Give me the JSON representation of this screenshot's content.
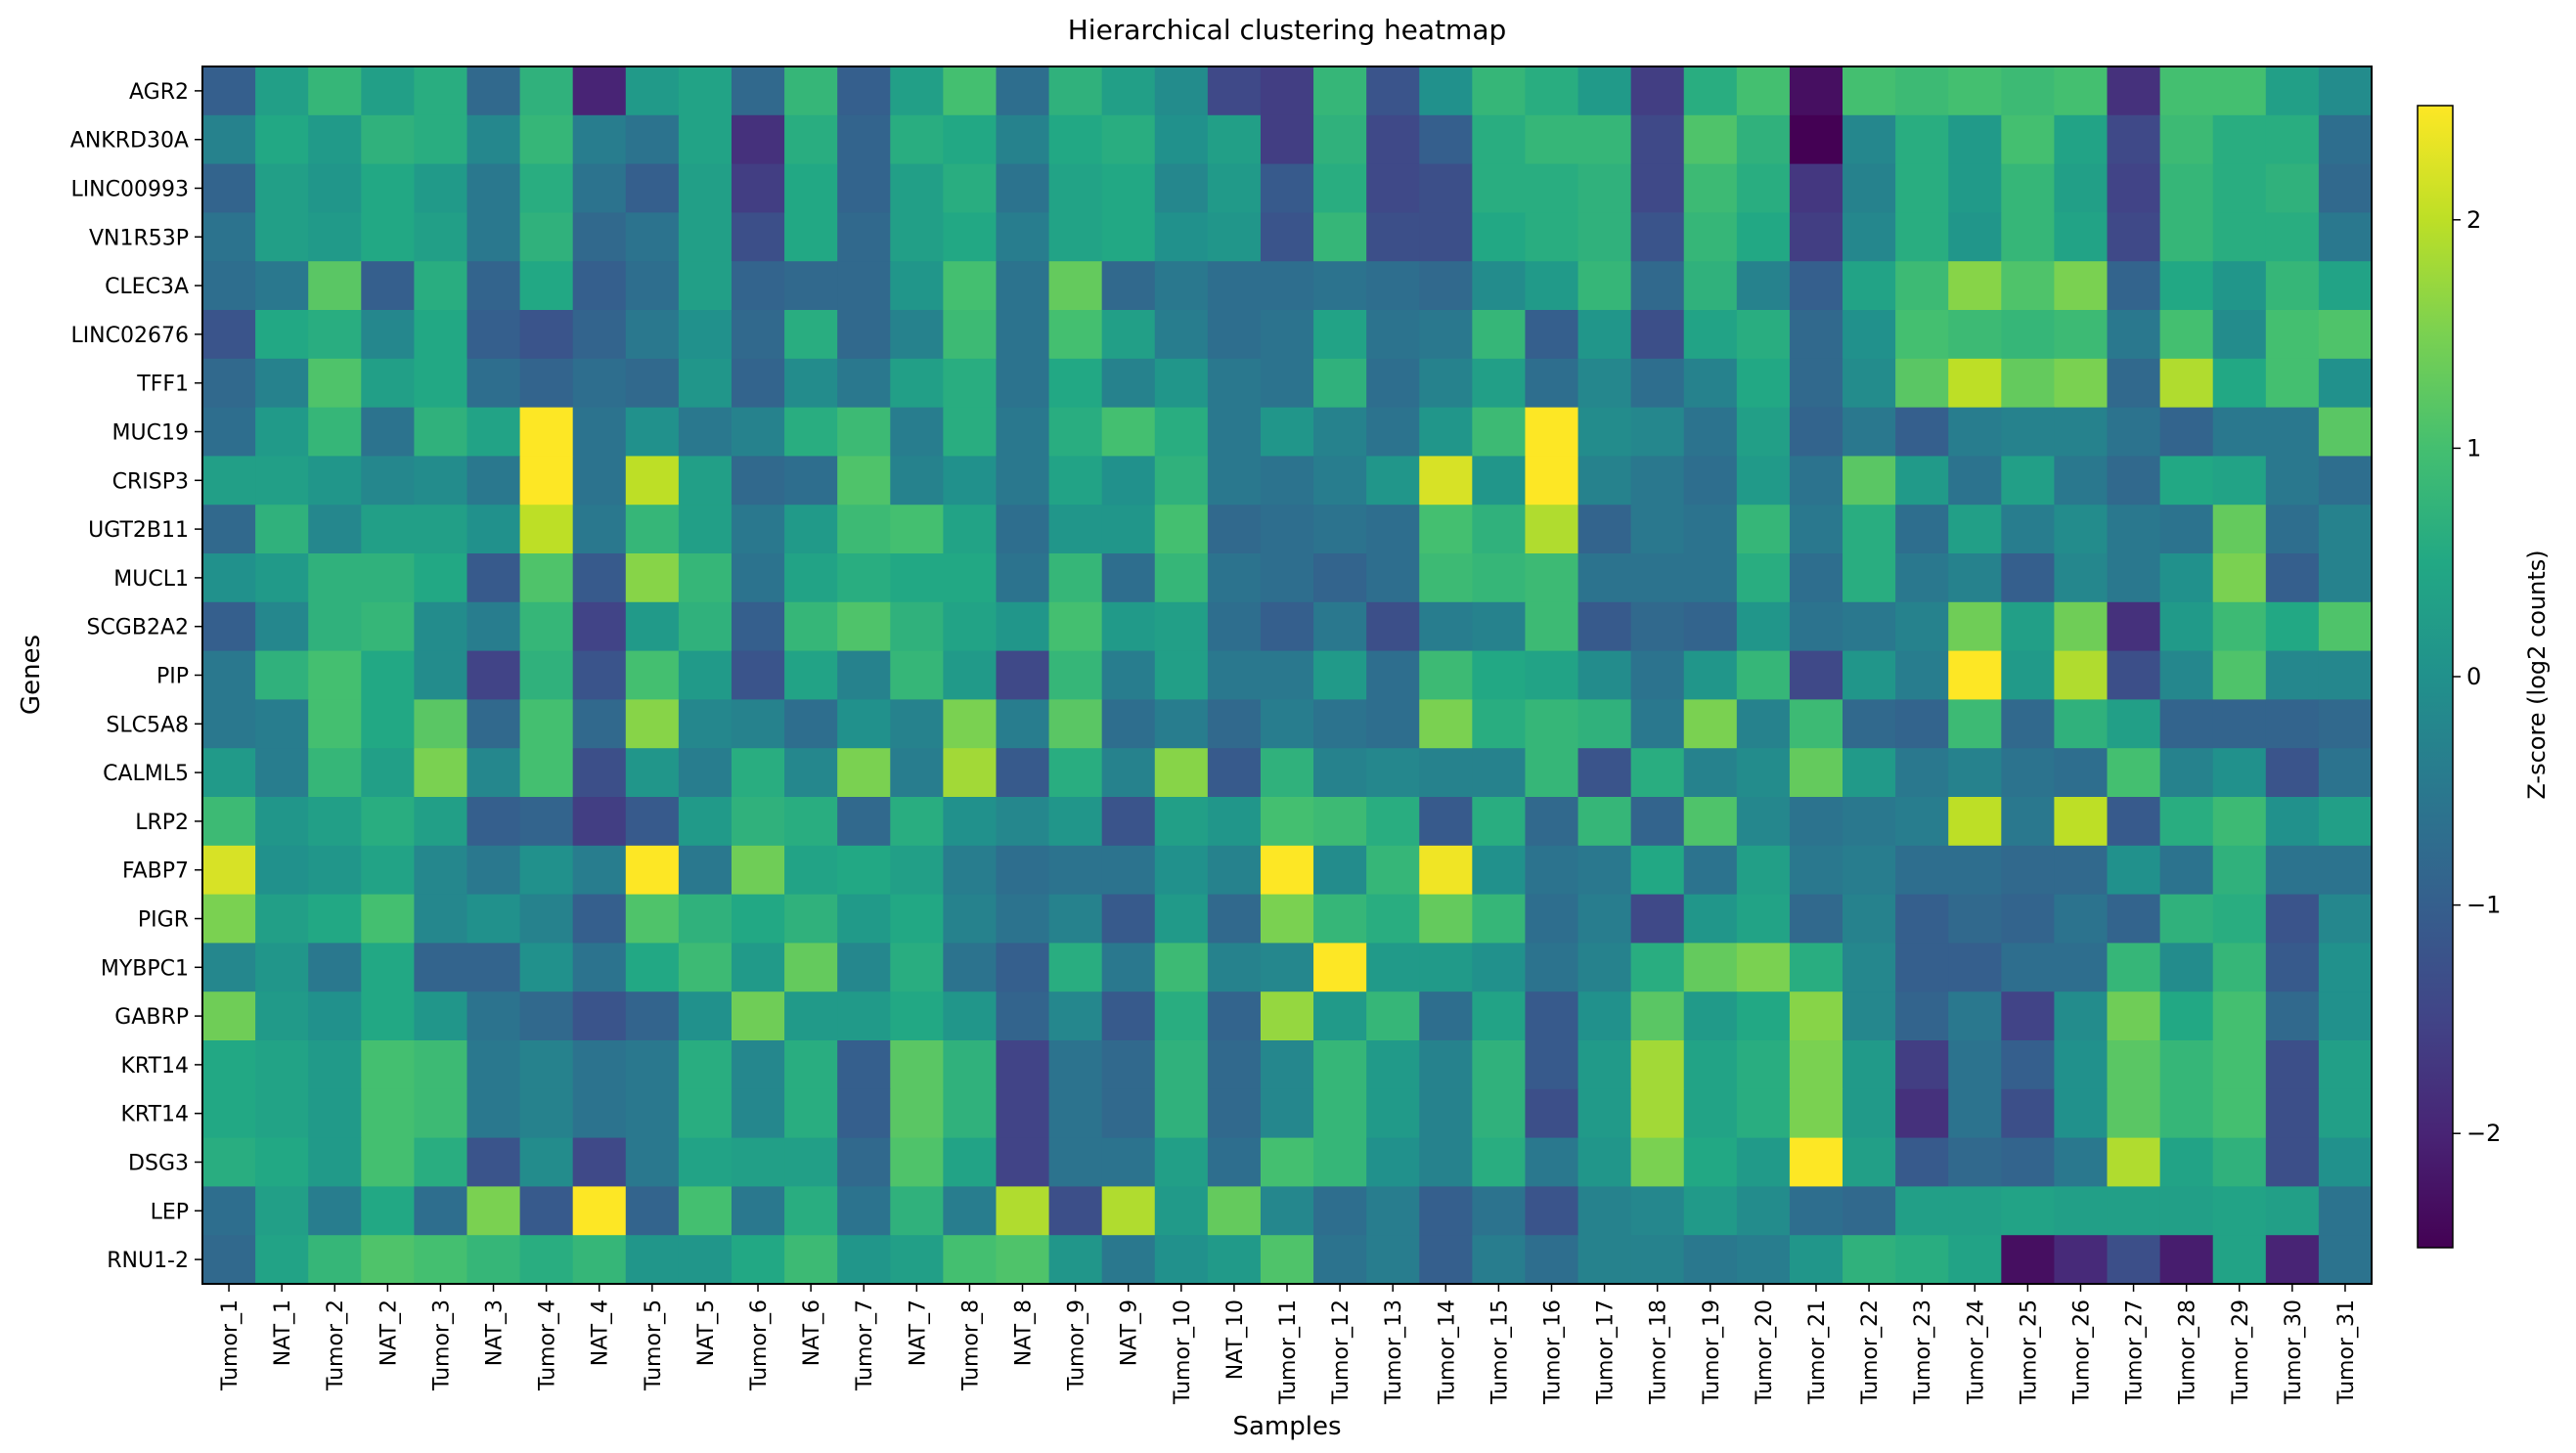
{
  "chart_data": {
    "type": "heatmap",
    "title": "Hierarchical clustering heatmap",
    "xlabel": "Samples",
    "ylabel": "Genes",
    "colorbar_label": "Z-score (log2 counts)",
    "colormap": "viridis",
    "color_range": [
      -2.5,
      2.5
    ],
    "colorbar_ticks": [
      2,
      1,
      0,
      -1,
      -2
    ],
    "colorbar_tick_labels": [
      "2",
      "1",
      "0",
      "−1",
      "−2"
    ],
    "x": [
      "Tumor_1",
      "NAT_1",
      "Tumor_2",
      "NAT_2",
      "Tumor_3",
      "NAT_3",
      "Tumor_4",
      "NAT_4",
      "Tumor_5",
      "NAT_5",
      "Tumor_6",
      "NAT_6",
      "Tumor_7",
      "NAT_7",
      "Tumor_8",
      "NAT_8",
      "Tumor_9",
      "NAT_9",
      "Tumor_10",
      "NAT_10",
      "Tumor_11",
      "Tumor_12",
      "Tumor_13",
      "Tumor_14",
      "Tumor_15",
      "Tumor_16",
      "Tumor_17",
      "Tumor_18",
      "Tumor_19",
      "Tumor_20",
      "Tumor_21",
      "Tumor_22",
      "Tumor_23",
      "Tumor_24",
      "Tumor_25",
      "Tumor_26",
      "Tumor_27",
      "Tumor_28",
      "Tumor_29",
      "Tumor_30",
      "Tumor_31"
    ],
    "y": [
      "AGR2",
      "ANKRD30A",
      "LINC00993",
      "VN1R53P",
      "CLEC3A",
      "LINC02676",
      "TFF1",
      "MUC19",
      "CRISP3",
      "UGT2B11",
      "MUCL1",
      "SCGB2A2",
      "PIP",
      "SLC5A8",
      "CALML5",
      "LRP2",
      "FABP7",
      "PIGR",
      "MYBPC1",
      "GABRP",
      "KRT14",
      "KRT14",
      "DSG3",
      "LEP",
      "RNU1-2"
    ],
    "y_label_colors": [
      "#bcbd22",
      "#bcbd22",
      "#bcbd22",
      "#bcbd22",
      "#b22222",
      "#b22222",
      "#b22222",
      "#228b22",
      "#228b22",
      "#228b22",
      "#228b22",
      "#bcbd22",
      "#bcbd22",
      "#000000",
      "#0000ff",
      "#0000ff",
      "#0000ff",
      "#0000ff",
      "#ff0000",
      "#ff0000",
      "#ff0000",
      "#ff0000",
      "#ff0000",
      "#40e0d0",
      "#000000"
    ],
    "values": [
      [
        -1.0,
        0.3,
        0.8,
        0.3,
        0.6,
        -0.8,
        0.7,
        -2.0,
        0.2,
        0.4,
        -0.8,
        0.8,
        -1.0,
        0.3,
        1.0,
        -0.7,
        0.7,
        0.3,
        -0.1,
        -1.4,
        -1.6,
        0.8,
        -1.2,
        0.0,
        0.8,
        0.6,
        0.2,
        -1.6,
        0.6,
        1.0,
        -2.3,
        1.0,
        0.9,
        1.0,
        0.9,
        1.0,
        -1.8,
        1.0,
        1.0,
        0.3,
        -0.1
      ],
      [
        -0.3,
        0.5,
        0.2,
        0.7,
        0.6,
        -0.2,
        0.8,
        -0.4,
        -0.6,
        0.4,
        -1.8,
        0.6,
        -0.9,
        0.6,
        0.5,
        -0.3,
        0.5,
        0.6,
        0.0,
        0.3,
        -1.6,
        0.7,
        -1.4,
        -1.0,
        0.6,
        0.8,
        0.8,
        -1.4,
        1.1,
        0.7,
        -2.6,
        -0.2,
        0.6,
        0.2,
        1.0,
        0.4,
        -1.4,
        0.9,
        0.6,
        0.6,
        -0.7
      ],
      [
        -0.9,
        0.3,
        0.1,
        0.5,
        0.2,
        -0.5,
        0.6,
        -0.6,
        -1.0,
        0.3,
        -1.6,
        0.5,
        -0.9,
        0.3,
        0.6,
        -0.6,
        0.4,
        0.5,
        -0.2,
        0.2,
        -1.1,
        0.6,
        -1.4,
        -1.3,
        0.6,
        0.6,
        0.7,
        -1.4,
        0.9,
        0.6,
        -1.7,
        -0.3,
        0.6,
        0.2,
        0.8,
        0.3,
        -1.5,
        0.8,
        0.6,
        0.7,
        -0.8
      ],
      [
        -0.6,
        0.3,
        0.2,
        0.5,
        0.3,
        -0.5,
        0.7,
        -0.8,
        -0.6,
        0.3,
        -1.3,
        0.5,
        -0.8,
        0.3,
        0.5,
        -0.4,
        0.4,
        0.5,
        0.0,
        0.1,
        -1.2,
        0.8,
        -1.3,
        -1.3,
        0.5,
        0.6,
        0.7,
        -1.2,
        0.8,
        0.5,
        -1.6,
        -0.2,
        0.6,
        0.1,
        0.8,
        0.4,
        -1.4,
        0.8,
        0.6,
        0.6,
        -0.5
      ],
      [
        -0.7,
        -0.5,
        1.2,
        -1.0,
        0.6,
        -0.9,
        0.5,
        -1.0,
        -0.7,
        0.3,
        -0.9,
        -0.8,
        -0.8,
        0.1,
        1.0,
        -0.6,
        1.3,
        -0.8,
        -0.5,
        -0.7,
        -0.7,
        -0.6,
        -0.7,
        -0.8,
        -0.1,
        0.2,
        0.8,
        -0.8,
        0.7,
        -0.3,
        -1.0,
        0.4,
        0.9,
        1.6,
        1.1,
        1.5,
        -0.9,
        0.5,
        0.1,
        0.8,
        0.4
      ],
      [
        -1.2,
        0.5,
        0.6,
        -0.2,
        0.5,
        -1.0,
        -1.2,
        -0.9,
        -0.5,
        0.0,
        -0.8,
        0.6,
        -0.8,
        -0.3,
        0.9,
        -0.6,
        1.0,
        0.3,
        -0.4,
        -0.7,
        -0.6,
        0.4,
        -0.6,
        -0.5,
        0.8,
        -1.0,
        0.1,
        -1.3,
        0.4,
        0.6,
        -0.8,
        0.0,
        1.0,
        0.9,
        0.8,
        0.9,
        -0.5,
        1.0,
        -0.1,
        1.0,
        1.1
      ],
      [
        -0.8,
        -0.3,
        1.1,
        0.3,
        0.5,
        -0.7,
        -0.9,
        -0.7,
        -0.8,
        0.1,
        -0.9,
        -0.1,
        -0.5,
        0.3,
        0.6,
        -0.6,
        0.5,
        -0.3,
        0.1,
        -0.5,
        -0.6,
        0.7,
        -0.7,
        -0.3,
        0.3,
        -0.7,
        -0.2,
        -0.7,
        -0.3,
        0.5,
        -0.8,
        -0.1,
        1.2,
        2.0,
        1.3,
        1.5,
        -0.8,
        1.9,
        0.5,
        1.0,
        0.0
      ],
      [
        -0.7,
        0.2,
        0.8,
        -0.6,
        0.7,
        0.4,
        2.5,
        -0.6,
        0.0,
        -0.5,
        -0.3,
        0.6,
        0.9,
        -0.4,
        0.6,
        -0.5,
        0.6,
        1.0,
        0.6,
        -0.5,
        0.1,
        -0.3,
        -0.6,
        0.1,
        0.9,
        2.5,
        -0.1,
        -0.2,
        -0.6,
        0.3,
        -0.9,
        -0.5,
        -1.0,
        -0.4,
        -0.3,
        -0.3,
        -0.6,
        -0.9,
        -0.5,
        -0.5,
        1.2
      ],
      [
        0.3,
        0.3,
        0.1,
        -0.2,
        -0.1,
        -0.5,
        2.5,
        -0.6,
        2.0,
        0.3,
        -0.8,
        -0.7,
        1.1,
        -0.3,
        0.0,
        -0.5,
        0.4,
        0.0,
        0.7,
        -0.5,
        -0.6,
        -0.4,
        0.1,
        2.2,
        0.1,
        2.5,
        -0.3,
        -0.5,
        -0.7,
        0.2,
        -0.6,
        1.2,
        0.2,
        -0.6,
        0.3,
        -0.5,
        -0.8,
        0.5,
        0.4,
        -0.5,
        -0.7
      ],
      [
        -0.8,
        0.7,
        -0.2,
        0.3,
        0.3,
        0.0,
        2.0,
        -0.5,
        0.8,
        0.3,
        -0.5,
        0.2,
        0.9,
        1.0,
        0.4,
        -0.7,
        0.1,
        0.1,
        1.0,
        -0.8,
        -0.7,
        -0.6,
        -0.7,
        1.0,
        0.7,
        1.9,
        -0.9,
        -0.5,
        -0.6,
        0.8,
        -0.5,
        0.6,
        -0.7,
        0.3,
        -0.4,
        -0.1,
        -0.5,
        -0.6,
        1.3,
        -0.7,
        -0.3
      ],
      [
        0.0,
        0.2,
        0.7,
        0.7,
        0.5,
        -1.1,
        1.1,
        -1.1,
        1.6,
        0.8,
        -0.6,
        0.4,
        0.6,
        0.5,
        0.5,
        -0.6,
        0.8,
        -0.7,
        0.8,
        -0.6,
        -0.7,
        -0.9,
        -0.7,
        0.9,
        0.8,
        0.9,
        -0.6,
        -0.6,
        -0.6,
        0.6,
        -0.7,
        0.6,
        -0.5,
        -0.3,
        -1.0,
        -0.2,
        -0.5,
        0.0,
        1.5,
        -1.0,
        -0.3
      ],
      [
        -1.0,
        -0.2,
        0.7,
        0.8,
        -0.1,
        -0.4,
        0.8,
        -1.5,
        0.2,
        0.7,
        -1.0,
        0.8,
        1.1,
        0.7,
        0.4,
        0.1,
        1.0,
        0.2,
        0.3,
        -0.7,
        -1.0,
        -0.5,
        -1.3,
        -0.4,
        -0.3,
        0.9,
        -1.1,
        -0.8,
        -0.9,
        0.1,
        -0.6,
        -0.5,
        -0.3,
        1.4,
        0.3,
        1.4,
        -1.8,
        0.2,
        0.9,
        0.5,
        1.1
      ],
      [
        -0.5,
        0.7,
        1.0,
        0.5,
        -0.1,
        -1.5,
        0.7,
        -1.2,
        1.0,
        0.2,
        -1.2,
        0.4,
        -0.3,
        0.8,
        0.2,
        -1.4,
        0.8,
        -0.4,
        0.3,
        -0.5,
        -0.5,
        0.2,
        -0.7,
        0.9,
        0.5,
        0.4,
        -0.1,
        -0.6,
        0.1,
        0.8,
        -1.4,
        0.1,
        -0.4,
        2.5,
        0.2,
        1.9,
        -1.3,
        -0.2,
        1.1,
        -0.2,
        -0.2
      ],
      [
        -0.5,
        -0.4,
        1.0,
        0.5,
        1.2,
        -0.8,
        1.0,
        -0.8,
        1.6,
        -0.2,
        -0.3,
        -0.7,
        0.0,
        -0.3,
        1.5,
        -0.4,
        1.2,
        -0.7,
        -0.4,
        -0.8,
        -0.4,
        -0.6,
        -0.7,
        1.5,
        0.6,
        0.8,
        0.7,
        -0.5,
        1.5,
        -0.3,
        0.9,
        -0.8,
        -0.9,
        0.9,
        -0.8,
        0.7,
        0.3,
        -0.9,
        -0.9,
        -0.9,
        -0.8
      ],
      [
        0.2,
        -0.4,
        0.8,
        0.3,
        1.5,
        -0.2,
        1.0,
        -1.3,
        0.1,
        -0.4,
        0.6,
        -0.2,
        1.5,
        -0.4,
        1.8,
        -1.1,
        0.6,
        -0.3,
        1.6,
        -1.1,
        0.7,
        -0.3,
        -0.2,
        -0.3,
        -0.3,
        0.8,
        -1.2,
        0.6,
        -0.3,
        -0.1,
        1.3,
        0.2,
        -0.5,
        -0.3,
        -0.6,
        -0.7,
        1.0,
        -0.3,
        0.0,
        -1.2,
        -0.6
      ],
      [
        0.9,
        0.1,
        0.3,
        0.6,
        0.3,
        -1.0,
        -0.9,
        -1.6,
        -1.1,
        0.2,
        0.7,
        0.6,
        -0.8,
        0.6,
        0.0,
        -0.2,
        0.1,
        -1.2,
        0.3,
        0.1,
        1.0,
        0.9,
        0.6,
        -1.1,
        0.6,
        -0.8,
        0.8,
        -0.9,
        1.1,
        -0.2,
        -0.6,
        -0.5,
        -0.4,
        2.0,
        -0.5,
        2.0,
        -1.1,
        0.6,
        0.9,
        0.0,
        0.3
      ],
      [
        2.2,
        0.0,
        0.1,
        0.4,
        -0.2,
        -0.5,
        0.0,
        -0.4,
        2.5,
        -0.5,
        1.4,
        0.4,
        0.5,
        0.3,
        -0.4,
        -0.7,
        -0.6,
        -0.6,
        0.0,
        -0.3,
        2.5,
        -0.1,
        0.8,
        2.4,
        0.0,
        -0.6,
        -0.5,
        0.5,
        -0.6,
        0.3,
        -0.5,
        -0.4,
        -0.7,
        -0.7,
        -0.8,
        -0.8,
        0.0,
        -0.6,
        0.7,
        -0.6,
        -0.6
      ],
      [
        1.5,
        0.3,
        0.5,
        1.0,
        -0.2,
        0.0,
        -0.3,
        -1.0,
        1.1,
        0.7,
        0.5,
        0.7,
        0.2,
        0.5,
        -0.3,
        -0.6,
        -0.3,
        -1.1,
        0.2,
        -0.8,
        1.5,
        0.8,
        0.6,
        1.3,
        0.8,
        -0.7,
        -0.4,
        -1.4,
        0.1,
        0.4,
        -0.8,
        -0.3,
        -1.0,
        -0.8,
        -0.9,
        -0.6,
        -0.9,
        0.7,
        0.6,
        -1.2,
        -0.2
      ],
      [
        -0.2,
        0.1,
        -0.5,
        0.5,
        -0.9,
        -0.9,
        0.0,
        -0.6,
        0.5,
        0.9,
        0.2,
        1.3,
        -0.2,
        0.6,
        -0.6,
        -1.0,
        0.6,
        -0.5,
        0.9,
        -0.3,
        -0.2,
        2.5,
        0.2,
        0.2,
        0.0,
        -0.6,
        -0.3,
        0.6,
        1.3,
        1.5,
        0.6,
        -0.2,
        -1.0,
        -1.0,
        -0.7,
        -0.7,
        0.8,
        -0.1,
        0.8,
        -1.1,
        0.0
      ],
      [
        1.4,
        0.2,
        0.0,
        0.5,
        0.1,
        -0.6,
        -0.8,
        -1.2,
        -0.9,
        0.0,
        1.4,
        0.2,
        0.2,
        0.5,
        0.1,
        -0.9,
        -0.2,
        -1.1,
        0.6,
        -0.9,
        1.7,
        0.2,
        0.8,
        -0.7,
        0.4,
        -1.1,
        0.0,
        1.2,
        0.2,
        0.5,
        1.6,
        -0.2,
        -0.9,
        -0.5,
        -1.5,
        -0.1,
        1.4,
        0.5,
        1.0,
        -0.8,
        0.0
      ],
      [
        0.5,
        0.4,
        0.2,
        1.0,
        0.9,
        -0.5,
        -0.3,
        -0.6,
        -0.5,
        0.6,
        -0.2,
        0.6,
        -1.0,
        1.2,
        0.7,
        -1.5,
        -0.6,
        -0.8,
        0.7,
        -0.8,
        -0.2,
        0.8,
        0.2,
        -0.3,
        0.7,
        -1.1,
        0.2,
        1.8,
        0.4,
        0.6,
        1.5,
        0.2,
        -1.6,
        -0.6,
        -1.0,
        0.0,
        1.2,
        0.8,
        1.0,
        -1.3,
        0.3
      ],
      [
        0.5,
        0.4,
        0.2,
        1.0,
        0.9,
        -0.5,
        -0.3,
        -0.6,
        -0.5,
        0.6,
        -0.2,
        0.6,
        -1.0,
        1.2,
        0.7,
        -1.5,
        -0.6,
        -0.8,
        0.7,
        -0.8,
        -0.2,
        0.8,
        0.2,
        -0.3,
        0.7,
        -1.3,
        0.2,
        1.8,
        0.4,
        0.6,
        1.5,
        0.2,
        -1.8,
        -0.6,
        -1.3,
        0.0,
        1.2,
        0.8,
        1.0,
        -1.3,
        0.3
      ],
      [
        0.6,
        0.5,
        0.2,
        1.0,
        0.6,
        -1.2,
        -0.1,
        -1.4,
        -0.5,
        0.4,
        0.3,
        0.3,
        -0.8,
        1.1,
        0.4,
        -1.5,
        -0.6,
        -0.6,
        0.3,
        -0.7,
        1.0,
        0.8,
        0.0,
        -0.3,
        0.6,
        -0.5,
        0.1,
        1.5,
        0.5,
        0.2,
        2.5,
        0.3,
        -1.1,
        -0.8,
        -0.9,
        -0.5,
        1.9,
        0.4,
        0.7,
        -1.3,
        0.0
      ],
      [
        -0.7,
        0.3,
        -0.4,
        0.5,
        -0.7,
        1.5,
        -1.1,
        2.5,
        -0.9,
        1.0,
        -0.5,
        0.6,
        -0.6,
        0.7,
        -0.4,
        1.9,
        -1.3,
        1.9,
        0.2,
        1.3,
        -0.2,
        -0.7,
        -0.4,
        -1.0,
        -0.6,
        -1.2,
        -0.3,
        -0.2,
        0.2,
        -0.1,
        -0.7,
        -0.8,
        0.3,
        0.3,
        0.4,
        0.3,
        0.3,
        0.3,
        0.4,
        0.3,
        -0.6
      ],
      [
        -0.8,
        0.4,
        0.8,
        1.1,
        1.0,
        0.8,
        0.6,
        0.8,
        0.1,
        0.1,
        0.5,
        0.9,
        0.1,
        0.3,
        1.0,
        1.1,
        0.1,
        -0.5,
        0.0,
        0.2,
        1.1,
        -0.6,
        -0.4,
        -1.0,
        -0.4,
        -0.7,
        -0.3,
        -0.3,
        -0.5,
        -0.4,
        0.1,
        0.7,
        0.6,
        0.4,
        -2.3,
        -1.9,
        -1.3,
        -2.1,
        0.4,
        -2.0,
        -0.6
      ]
    ]
  }
}
